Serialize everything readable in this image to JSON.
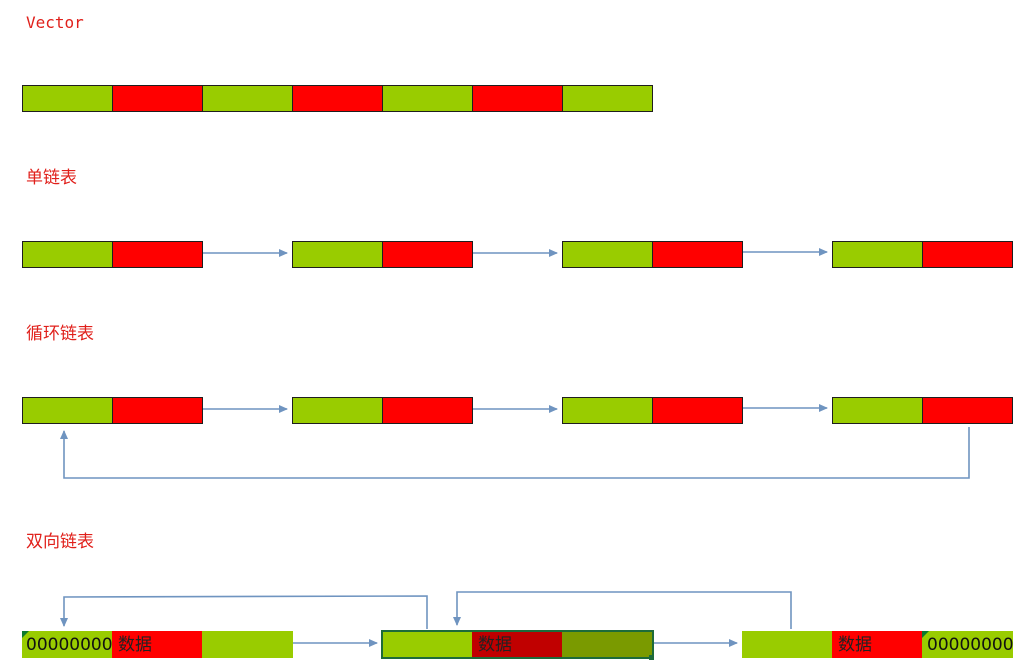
{
  "sections": {
    "vector": {
      "title": "Vector"
    },
    "singly_linked": {
      "title": "单链表"
    },
    "circular_linked": {
      "title": "循环链表"
    },
    "doubly_linked": {
      "title": "双向链表",
      "null_value_left": "00000000",
      "data_label_1": "数据",
      "data_label_2": "数据",
      "data_label_3": "数据",
      "null_value_right": "00000000"
    }
  },
  "colors": {
    "title_red": "#e0201b",
    "pointer_green": "#99cc00",
    "data_red": "#ff0000",
    "arrow_blue": "#6f94c0",
    "selected_dark_red": "#c00000",
    "selected_dark_green": "#7a9a00"
  }
}
